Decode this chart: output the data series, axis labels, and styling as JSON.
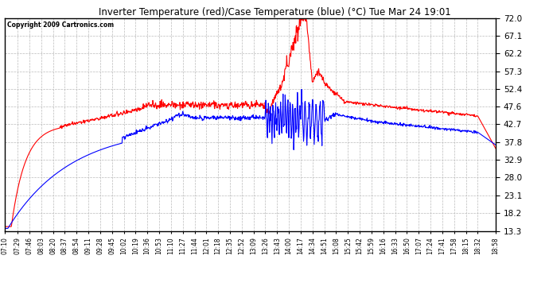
{
  "title": "Inverter Temperature (red)/Case Temperature (blue) (°C) Tue Mar 24 19:01",
  "copyright": "Copyright 2009 Cartronics.com",
  "background_color": "#ffffff",
  "plot_bg_color": "#ffffff",
  "grid_color": "#bbbbbb",
  "yticks": [
    13.3,
    18.2,
    23.1,
    28.0,
    32.9,
    37.8,
    42.7,
    47.6,
    52.4,
    57.3,
    62.2,
    67.1,
    72.0
  ],
  "ylim": [
    13.3,
    72.0
  ],
  "xtick_labels": [
    "07:10",
    "07:29",
    "07:46",
    "08:03",
    "08:20",
    "08:37",
    "08:54",
    "09:11",
    "09:28",
    "09:45",
    "10:02",
    "10:19",
    "10:36",
    "10:53",
    "11:10",
    "11:27",
    "11:44",
    "12:01",
    "12:18",
    "12:35",
    "12:52",
    "13:09",
    "13:26",
    "13:43",
    "14:00",
    "14:17",
    "14:34",
    "14:51",
    "15:08",
    "15:25",
    "15:42",
    "15:59",
    "16:16",
    "16:33",
    "16:50",
    "17:07",
    "17:24",
    "17:41",
    "17:58",
    "18:15",
    "18:32",
    "18:58"
  ],
  "red_color": "#ff0000",
  "blue_color": "#0000ff",
  "line_width": 0.8
}
